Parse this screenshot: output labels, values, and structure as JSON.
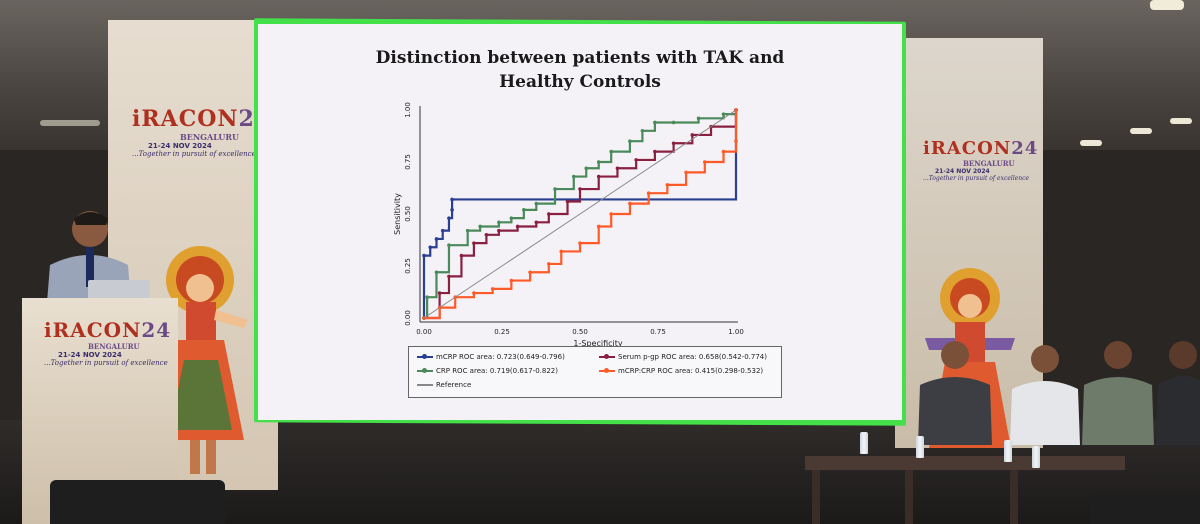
{
  "slide": {
    "title_line1": "Distinction between patients with TAK and",
    "title_line2": "Healthy Controls"
  },
  "chart_data": {
    "type": "line",
    "title": "Distinction between patients with TAK and Healthy Controls",
    "xlabel": "1-Specificity",
    "ylabel": "Sensitivity",
    "xlim": [
      0,
      1
    ],
    "ylim": [
      0,
      1
    ],
    "x_ticks": [
      "0.00",
      "0.25",
      "0.50",
      "0.75",
      "1.00"
    ],
    "y_ticks": [
      "0.00",
      "0.25",
      "0.50",
      "0.75",
      "1.00"
    ],
    "legend_position": "bottom",
    "series": [
      {
        "name": "mCRP ROC area: 0.723(0.649-0.796)",
        "color": "#2a3f8f",
        "x": [
          0,
          0,
          0.02,
          0.04,
          0.06,
          0.08,
          0.09,
          0.09,
          1.0
        ],
        "y": [
          0,
          0.3,
          0.34,
          0.38,
          0.42,
          0.48,
          0.52,
          0.57,
          1.0
        ]
      },
      {
        "name": "CRP ROC area: 0.719(0.617-0.822)",
        "color": "#4a8a5a",
        "x": [
          0,
          0.01,
          0.04,
          0.08,
          0.14,
          0.18,
          0.24,
          0.28,
          0.32,
          0.36,
          0.42,
          0.48,
          0.52,
          0.56,
          0.6,
          0.66,
          0.7,
          0.74,
          0.8,
          0.88,
          0.96,
          1.0
        ],
        "y": [
          0,
          0.1,
          0.22,
          0.35,
          0.42,
          0.44,
          0.46,
          0.48,
          0.52,
          0.55,
          0.62,
          0.68,
          0.72,
          0.75,
          0.8,
          0.85,
          0.9,
          0.94,
          0.94,
          0.96,
          0.98,
          1.0
        ]
      },
      {
        "name": "Serum p-gp ROC area: 0.658(0.542-0.774)",
        "color": "#8a2040",
        "x": [
          0,
          0.05,
          0.08,
          0.12,
          0.16,
          0.2,
          0.24,
          0.3,
          0.36,
          0.4,
          0.46,
          0.5,
          0.56,
          0.62,
          0.68,
          0.74,
          0.8,
          0.86,
          0.92,
          1.0
        ],
        "y": [
          0,
          0.12,
          0.2,
          0.3,
          0.36,
          0.4,
          0.42,
          0.44,
          0.46,
          0.5,
          0.56,
          0.62,
          0.68,
          0.72,
          0.76,
          0.8,
          0.84,
          0.88,
          0.92,
          1.0
        ]
      },
      {
        "name": "mCRP:CRP ROC area: 0.415(0.298-0.532)",
        "color": "#ff5a28",
        "x": [
          0,
          0.05,
          0.1,
          0.16,
          0.22,
          0.28,
          0.34,
          0.4,
          0.44,
          0.5,
          0.56,
          0.6,
          0.66,
          0.72,
          0.78,
          0.84,
          0.9,
          0.96,
          1.0,
          1.0
        ],
        "y": [
          0,
          0.05,
          0.1,
          0.12,
          0.14,
          0.18,
          0.22,
          0.26,
          0.32,
          0.36,
          0.44,
          0.5,
          0.55,
          0.6,
          0.64,
          0.7,
          0.75,
          0.8,
          0.85,
          1.0
        ]
      },
      {
        "name": "Reference",
        "color": "#888888",
        "x": [
          0,
          1
        ],
        "y": [
          0,
          1
        ]
      }
    ]
  },
  "legend": {
    "mcrp": "mCRP ROC area: 0.723(0.649-0.796)",
    "crp": "CRP ROC area: 0.719(0.617-0.822)",
    "ref": "Reference",
    "pgp": "Serum p-gp ROC area: 0.658(0.542-0.774)",
    "ratio": "mCRP:CRP ROC area: 0.415(0.298-0.532)"
  },
  "banners": {
    "brand": "iRACON",
    "year": "24",
    "city": "BENGALURU",
    "dates": "21-24 NOV 2024",
    "tagline": "...Together in pursuit of excellence"
  },
  "colors": {
    "screen_border": "#44e04a",
    "brand_red": "#b03020",
    "brand_purple": "#3b2d6b"
  }
}
